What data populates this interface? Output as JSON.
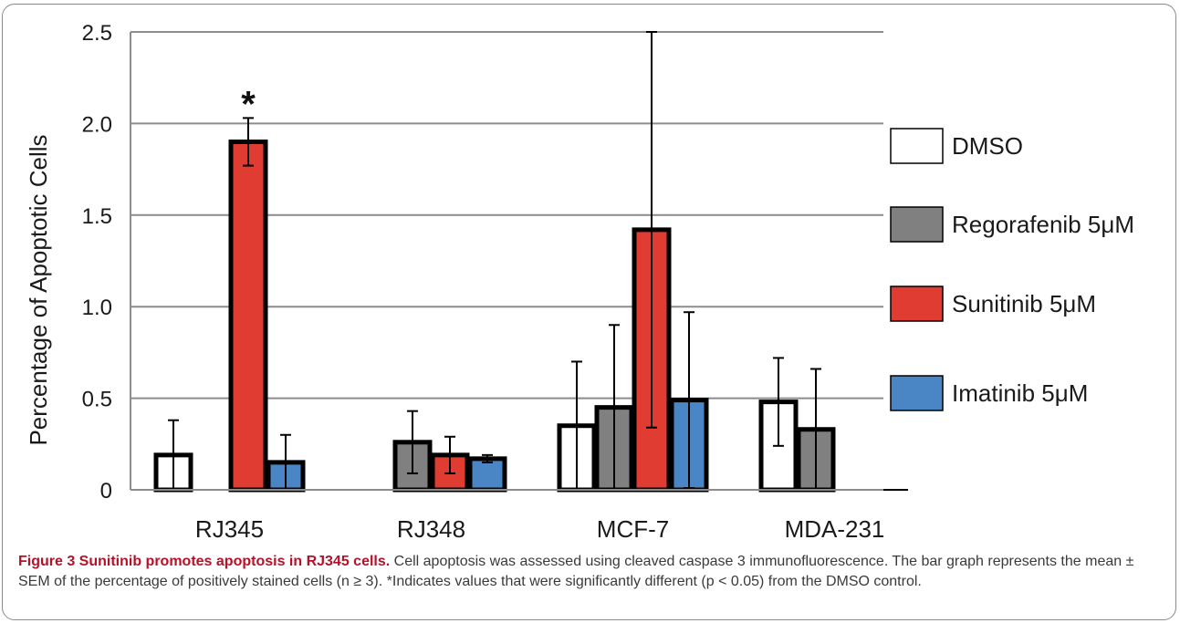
{
  "chart_data": {
    "type": "bar",
    "title": "",
    "ylabel": "Percentage of Apoptotic Cells",
    "xlabel": "",
    "ylim": [
      0,
      2.5
    ],
    "yticks": [
      "0",
      "0.5",
      "1.0",
      "1.5",
      "2.0",
      "2.5"
    ],
    "ytick_values": [
      0,
      0.5,
      1.0,
      1.5,
      2.0,
      2.5
    ],
    "grid": true,
    "legend_position": "right",
    "categories": [
      "RJ345",
      "RJ348",
      "MCF-7",
      "MDA-231"
    ],
    "series": [
      {
        "name": "DMSO",
        "color": "#ffffff",
        "values": [
          0.19,
          0,
          0.35,
          0.48
        ],
        "errors": [
          0.19,
          0,
          0.35,
          0.24
        ]
      },
      {
        "name": "Regorafenib 5μM",
        "color": "#808080",
        "values": [
          0,
          0.26,
          0.45,
          0.33
        ],
        "errors": [
          0,
          0.17,
          0.45,
          0.33
        ]
      },
      {
        "name": "Sunitinib 5μM",
        "color": "#e03c31",
        "values": [
          1.9,
          0.19,
          1.42,
          0
        ],
        "errors": [
          0.13,
          0.1,
          1.08,
          0
        ]
      },
      {
        "name": "Imatinib 5μM",
        "color": "#4a86c5",
        "values": [
          0.15,
          0.17,
          0.49,
          0
        ],
        "errors": [
          0.15,
          0.02,
          0.48,
          0
        ]
      }
    ],
    "annotations": [
      {
        "text": "*",
        "category": "RJ345",
        "series": "Sunitinib 5μM"
      }
    ]
  },
  "caption": {
    "title": "Figure 3 Sunitinib promotes apoptosis in RJ345 cells.",
    "text": " Cell apoptosis was assessed using cleaved caspase 3 immunofluorescence. The bar graph represents the mean ± SEM of the percentage of positively stained cells (n ≥ 3). *Indicates values that were significantly different (p < 0.05) from the DMSO control."
  }
}
